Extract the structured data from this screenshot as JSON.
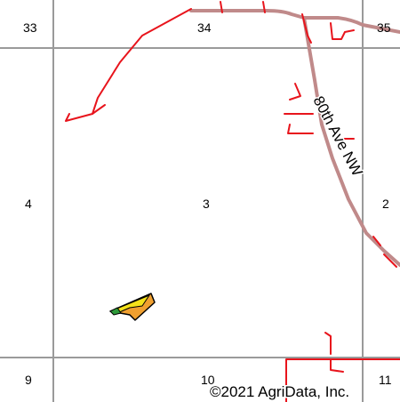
{
  "map": {
    "sections": {
      "s33": "33",
      "s34": "34",
      "s35": "35",
      "s4": "4",
      "s3": "3",
      "s2": "2",
      "s9": "9",
      "s10": "10",
      "s11": "11"
    },
    "road_name": "80th Ave NW",
    "copyright": "©2021 AgriData, Inc.",
    "colors": {
      "background": "#ffffff",
      "section_lines": "#9a9a9a",
      "minor_roads": "#e8141c",
      "highway": "#c08a8a",
      "field_fill_yellow": "#f5e21a",
      "field_fill_orange": "#f0a030",
      "field_fill_green": "#2e9a3a"
    }
  }
}
